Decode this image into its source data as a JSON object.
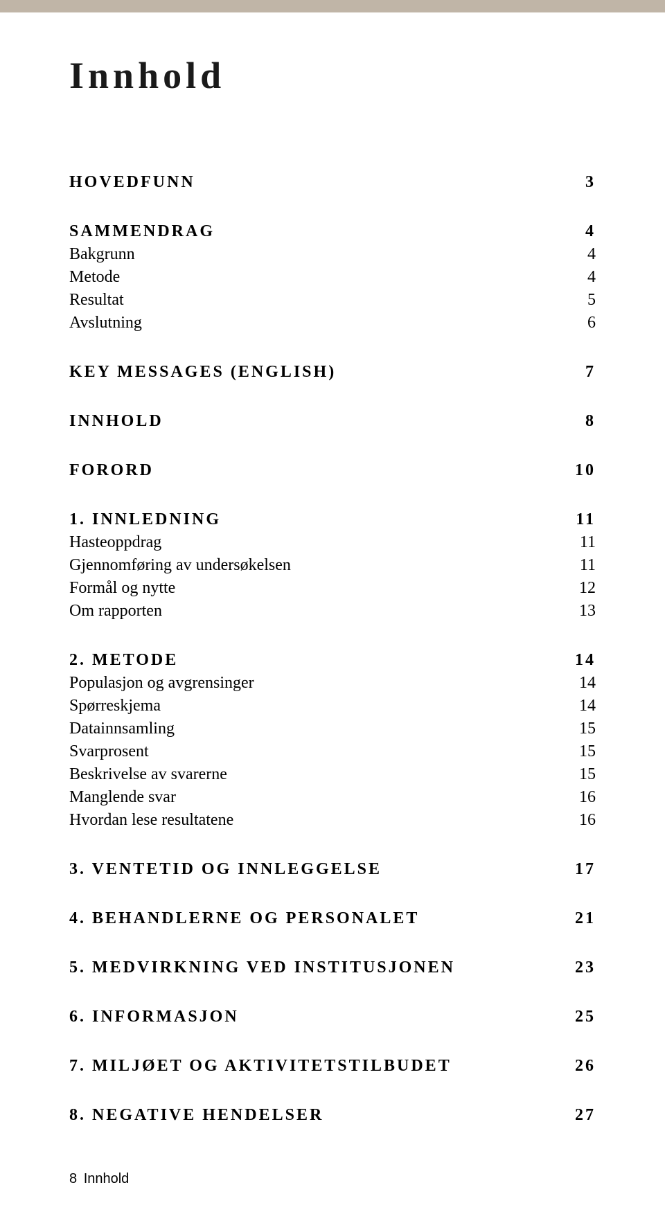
{
  "title": "Innhold",
  "sections": [
    {
      "type": "head",
      "label": "HOVEDFUNN",
      "page": "3"
    },
    {
      "type": "head",
      "label": "SAMMENDRAG",
      "page": "4"
    },
    {
      "type": "sub",
      "label": "Bakgrunn",
      "page": "4"
    },
    {
      "type": "sub",
      "label": "Metode",
      "page": "4"
    },
    {
      "type": "sub",
      "label": "Resultat",
      "page": "5"
    },
    {
      "type": "sub",
      "label": "Avslutning",
      "page": "6"
    },
    {
      "type": "head",
      "label": "KEY MESSAGES (ENGLISH)",
      "page": "7"
    },
    {
      "type": "head",
      "label": "INNHOLD",
      "page": "8"
    },
    {
      "type": "head",
      "label": "FORORD",
      "page": "10"
    },
    {
      "type": "head",
      "label": "1. INNLEDNING",
      "page": "11"
    },
    {
      "type": "sub",
      "label": "Hasteoppdrag",
      "page": "11"
    },
    {
      "type": "sub",
      "label": "Gjennomføring av undersøkelsen",
      "page": "11"
    },
    {
      "type": "sub",
      "label": "Formål og nytte",
      "page": "12"
    },
    {
      "type": "sub",
      "label": "Om rapporten",
      "page": "13"
    },
    {
      "type": "head",
      "label": "2. METODE",
      "page": "14"
    },
    {
      "type": "sub",
      "label": "Populasjon og avgrensinger",
      "page": "14"
    },
    {
      "type": "sub",
      "label": "Spørreskjema",
      "page": "14"
    },
    {
      "type": "sub",
      "label": "Datainnsamling",
      "page": "15"
    },
    {
      "type": "sub",
      "label": "Svarprosent",
      "page": "15"
    },
    {
      "type": "sub",
      "label": "Beskrivelse av svarerne",
      "page": "15"
    },
    {
      "type": "sub",
      "label": "Manglende svar",
      "page": "16"
    },
    {
      "type": "sub",
      "label": "Hvordan lese resultatene",
      "page": "16"
    },
    {
      "type": "head",
      "label": "3. VENTETID OG INNLEGGELSE",
      "page": "17"
    },
    {
      "type": "head",
      "label": "4. BEHANDLERNE OG PERSONALET",
      "page": "21"
    },
    {
      "type": "head",
      "label": "5. MEDVIRKNING VED INSTITUSJONEN",
      "page": "23"
    },
    {
      "type": "head",
      "label": "6. INFORMASJON",
      "page": "25"
    },
    {
      "type": "head",
      "label": "7. MILJØET OG AKTIVITETSTILBUDET",
      "page": "26"
    },
    {
      "type": "head",
      "label": "8. NEGATIVE HENDELSER",
      "page": "27"
    }
  ],
  "footer": {
    "pagenum": "8",
    "label": "Innhold"
  }
}
